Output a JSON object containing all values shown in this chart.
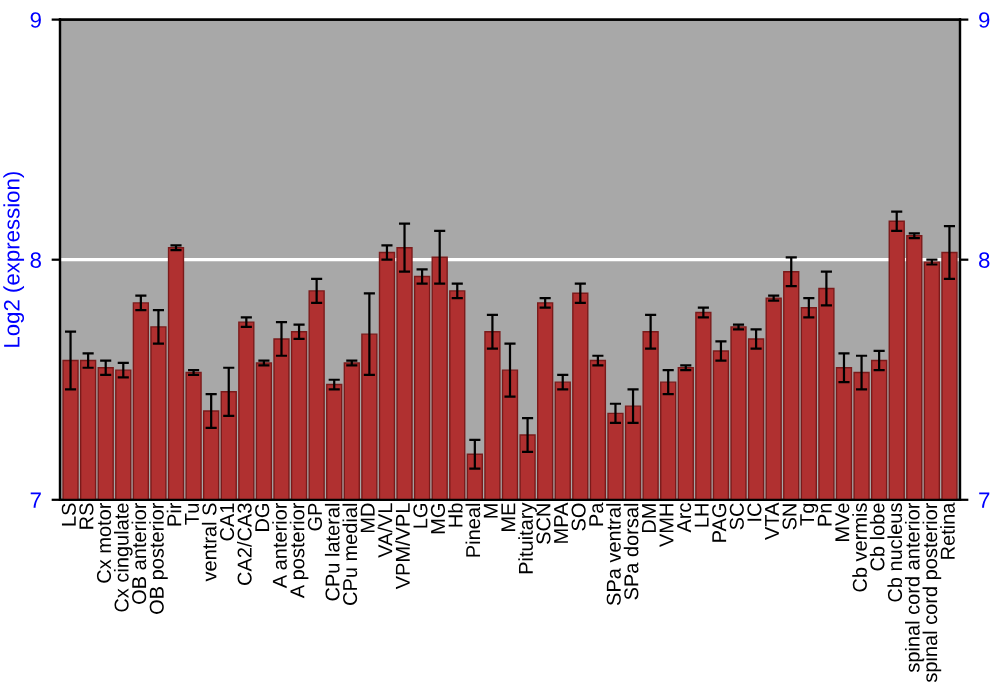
{
  "chart_data": {
    "type": "bar",
    "ylabel": "Log2 (expression)",
    "categories": [
      "LS",
      "RS",
      "Cx motor",
      "Cx cingulate",
      "OB anterior",
      "OB posterior",
      "Pir",
      "Tu",
      "ventral S",
      "CA1",
      "CA2/CA3",
      "DG",
      "A anterior",
      "A posterior",
      "GP",
      "CPu lateral",
      "CPu medial",
      "MD",
      "VA/VL",
      "VPM/VPL",
      "LG",
      "MG",
      "Hb",
      "Pineal",
      "M",
      "ME",
      "Pituitary",
      "SCN",
      "MPA",
      "SO",
      "Pa",
      "SPa ventral",
      "SPa dorsal",
      "DM",
      "VMH",
      "Arc",
      "LH",
      "PAG",
      "SC",
      "IC",
      "VTA",
      "SN",
      "Tg",
      "Pn",
      "MVe",
      "Cb vermis",
      "Cb lobe",
      "Cb nucleus",
      "spinal cord anterior",
      "spinal cord posterior",
      "Retina"
    ],
    "values": [
      7.58,
      7.58,
      7.55,
      7.54,
      7.82,
      7.72,
      8.05,
      7.53,
      7.37,
      7.45,
      7.74,
      7.57,
      7.67,
      7.7,
      7.87,
      7.48,
      7.57,
      7.69,
      8.03,
      8.05,
      7.93,
      8.01,
      7.87,
      7.19,
      7.7,
      7.54,
      7.27,
      7.82,
      7.49,
      7.86,
      7.58,
      7.36,
      7.39,
      7.7,
      7.49,
      7.55,
      7.78,
      7.62,
      7.72,
      7.67,
      7.84,
      7.95,
      7.8,
      7.88,
      7.55,
      7.53,
      7.58,
      8.16,
      8.1,
      7.99,
      8.03
    ],
    "errors": [
      0.12,
      0.03,
      0.03,
      0.03,
      0.03,
      0.07,
      0.01,
      0.01,
      0.07,
      0.1,
      0.02,
      0.01,
      0.07,
      0.03,
      0.05,
      0.02,
      0.01,
      0.17,
      0.03,
      0.1,
      0.03,
      0.11,
      0.03,
      0.06,
      0.07,
      0.11,
      0.07,
      0.02,
      0.03,
      0.04,
      0.02,
      0.04,
      0.07,
      0.07,
      0.05,
      0.01,
      0.02,
      0.04,
      0.01,
      0.04,
      0.01,
      0.06,
      0.04,
      0.07,
      0.06,
      0.07,
      0.04,
      0.04,
      0.01,
      0.01,
      0.11
    ],
    "color": "#b03030",
    "ylim": [
      7,
      9
    ],
    "yticks": [
      7,
      8,
      9
    ],
    "y2lim": [
      7,
      9
    ],
    "y2ticks": [
      7,
      8,
      9
    ],
    "ref_lines": [
      {
        "axis": "y",
        "value": 8,
        "color": "#ffffff"
      }
    ]
  }
}
